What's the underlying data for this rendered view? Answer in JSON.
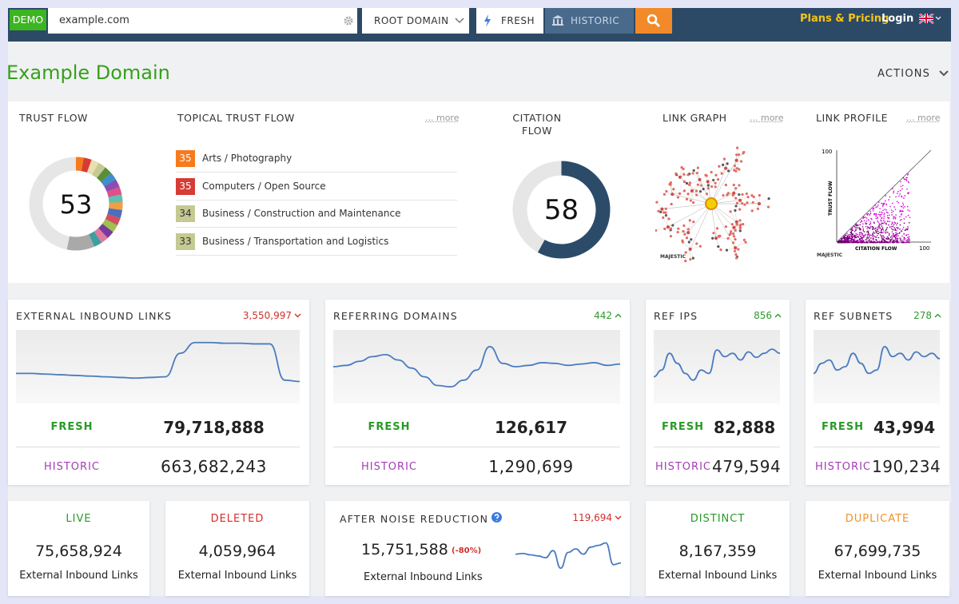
{
  "topbar": {
    "badge": "DEMO",
    "search": "example.com",
    "scope": "ROOT DOMAIN",
    "fresh": "FRESH",
    "historic": "HISTORIC",
    "plans": "Plans & Pricing",
    "login": "Login"
  },
  "header": {
    "title": "Example Domain",
    "actions": "ACTIONS"
  },
  "overview": {
    "trust_flow": {
      "label": "TRUST FLOW",
      "value": 53
    },
    "topical": {
      "label": "TOPICAL TRUST FLOW",
      "more": "... more",
      "topics": [
        {
          "score": 35,
          "name": "Arts / Photography",
          "color": "#f77a1c"
        },
        {
          "score": 35,
          "name": "Computers / Open Source",
          "color": "#d83a34"
        },
        {
          "score": 34,
          "name": "Business / Construction and Maintenance",
          "color": "#c5c992"
        },
        {
          "score": 33,
          "name": "Business / Transportation and Logistics",
          "color": "#c5c992"
        }
      ]
    },
    "citation_flow": {
      "label": "CITATION FLOW",
      "value": 58
    },
    "link_graph": {
      "label": "LINK GRAPH",
      "more": "... more",
      "brand": "MAJESTIC"
    },
    "link_profile": {
      "label": "LINK PROFILE",
      "more": "... more",
      "y_max": "100",
      "y_label": "TRUST FLOW",
      "x_label": "CITATION FLOW",
      "x_max": "100",
      "brand": "MAJESTIC"
    }
  },
  "cards": [
    {
      "title": "EXTERNAL INBOUND LINKS",
      "delta": "3,550,997",
      "trend": "down",
      "fresh_label": "FRESH",
      "fresh": "79,718,888",
      "historic_label": "HISTORIC",
      "historic": "663,682,243",
      "sparkline": [
        40,
        40,
        39,
        38,
        37,
        36,
        35,
        34,
        33,
        34,
        35,
        70,
        86,
        86,
        85,
        85,
        84,
        84,
        30,
        28
      ]
    },
    {
      "title": "REFERRING DOMAINS",
      "delta": "442",
      "trend": "up",
      "fresh_label": "FRESH",
      "fresh": "126,617",
      "historic_label": "HISTORIC",
      "historic": "1,290,699",
      "sparkline": [
        50,
        52,
        58,
        65,
        68,
        60,
        48,
        35,
        22,
        20,
        30,
        45,
        80,
        55,
        50,
        52,
        56,
        55,
        52,
        54,
        56,
        52,
        54
      ]
    },
    {
      "title": "REF IPS",
      "delta": "856",
      "trend": "up",
      "fresh_label": "FRESH",
      "fresh": "82,888",
      "historic_label": "HISTORIC",
      "historic": "479,594",
      "sparkline": [
        35,
        45,
        70,
        55,
        40,
        30,
        45,
        40,
        75,
        65,
        70,
        60,
        72,
        64,
        70,
        76,
        70
      ]
    },
    {
      "title": "REF SUBNETS",
      "delta": "278",
      "trend": "up",
      "fresh_label": "FRESH",
      "fresh": "43,994",
      "historic_label": "HISTORIC",
      "historic": "190,234",
      "sparkline": [
        40,
        55,
        60,
        45,
        50,
        70,
        55,
        40,
        45,
        80,
        65,
        70,
        60,
        72,
        65,
        70,
        62
      ]
    }
  ],
  "summary": [
    {
      "label": "LIVE",
      "value": "75,658,924",
      "caption": "External Inbound Links",
      "color": "#279b25"
    },
    {
      "label": "DELETED",
      "value": "4,059,964",
      "caption": "External Inbound Links",
      "color": "#d0302c"
    },
    {
      "title": "AFTER NOISE REDUCTION",
      "delta": "119,694",
      "trend": "down",
      "value": "15,751,588",
      "change": "(-80%)",
      "caption": "External Inbound Links",
      "sparkline": [
        60,
        62,
        58,
        55,
        50,
        70,
        20,
        65,
        75,
        60,
        80,
        85,
        92,
        30,
        35
      ]
    },
    {
      "label": "DISTINCT",
      "value": "8,167,359",
      "caption": "External Inbound Links",
      "color": "#279b25"
    },
    {
      "label": "DUPLICATE",
      "value": "67,699,735",
      "caption": "External Inbound Links",
      "color": "#f0922a"
    }
  ]
}
